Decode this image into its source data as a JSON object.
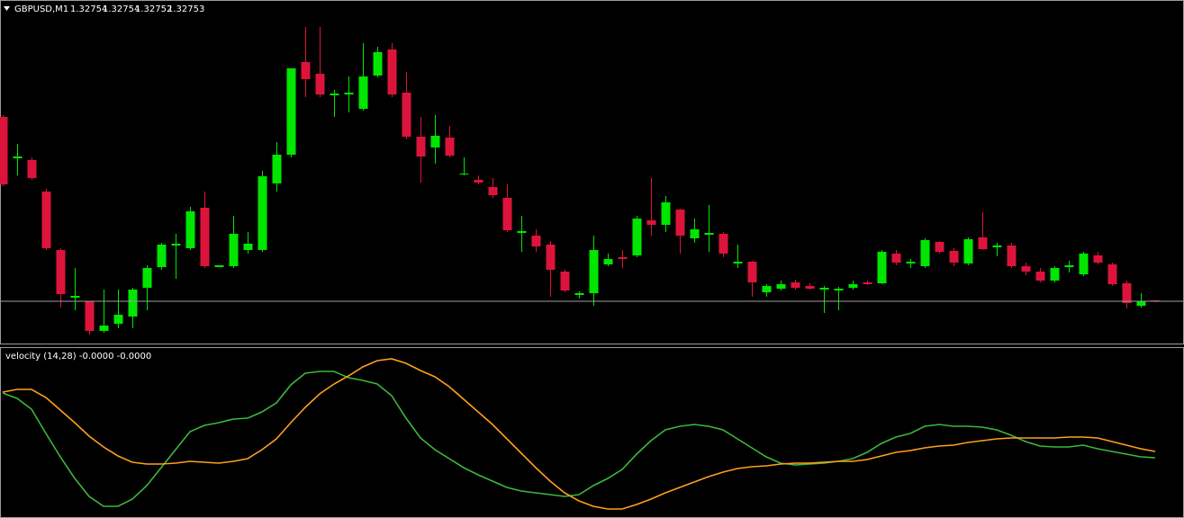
{
  "chart_data": [
    {
      "type": "candlestick",
      "symbol": "GBPUSD,M1",
      "open": [
        1.32958,
        1.32912,
        1.3291,
        1.32875,
        1.3281,
        1.32757,
        1.32753,
        1.3272,
        1.32728,
        1.32736,
        1.32768,
        1.32791,
        1.32815,
        1.32812,
        1.32857,
        1.32791,
        1.32792,
        1.3281,
        1.3281,
        1.32884,
        1.32916,
        1.33019,
        1.33006,
        1.32982,
        1.32983,
        1.32967,
        1.33004,
        1.33033,
        1.32985,
        1.32936,
        1.32924,
        1.32935,
        1.32894,
        1.32888,
        1.3288,
        1.32868,
        1.32829,
        1.32826,
        1.32816,
        1.32786,
        1.3276,
        1.32762,
        1.32794,
        1.32802,
        1.32804,
        1.32843,
        1.32838,
        1.32855,
        1.32823,
        1.32827,
        1.32828,
        1.32795,
        1.32797,
        1.32763,
        1.32767,
        1.32774,
        1.3277,
        1.32766,
        1.32765,
        1.32768,
        1.32774,
        1.32773,
        1.32806,
        1.32795,
        1.32792,
        1.32819,
        1.32809,
        1.32795,
        1.32824,
        1.32813,
        1.32815,
        1.32792,
        1.32786,
        1.32776,
        1.32791,
        1.32783,
        1.32804,
        1.32794,
        1.32773,
        1.32748,
        1.32754
      ],
      "high": [
        1.3296,
        1.32928,
        1.32913,
        1.32878,
        1.32812,
        1.3279,
        1.32753,
        1.32766,
        1.32766,
        1.32768,
        1.32793,
        1.32818,
        1.32828,
        1.32858,
        1.32875,
        1.32793,
        1.32848,
        1.3283,
        1.32898,
        1.3293,
        1.33012,
        1.33058,
        1.33058,
        1.32988,
        1.33003,
        1.3304,
        1.33036,
        1.3304,
        1.33008,
        1.32958,
        1.3296,
        1.32948,
        1.32913,
        1.32893,
        1.3289,
        1.32883,
        1.32848,
        1.32833,
        1.3282,
        1.32788,
        1.32764,
        1.32826,
        1.32806,
        1.3281,
        1.32848,
        1.3289,
        1.3287,
        1.32856,
        1.32845,
        1.3286,
        1.3283,
        1.32816,
        1.32798,
        1.32772,
        1.32776,
        1.32777,
        1.32773,
        1.3277,
        1.32769,
        1.32776,
        1.32776,
        1.3281,
        1.3281,
        1.328,
        1.32823,
        1.3282,
        1.32812,
        1.32824,
        1.32852,
        1.32818,
        1.32818,
        1.32796,
        1.3279,
        1.32792,
        1.32798,
        1.32808,
        1.32808,
        1.32796,
        1.32776,
        1.32762,
        1.32754
      ],
      "low": [
        1.32881,
        1.32893,
        1.32888,
        1.3281,
        1.32746,
        1.32743,
        1.32716,
        1.32718,
        1.32723,
        1.32723,
        1.32743,
        1.32788,
        1.32778,
        1.3281,
        1.3279,
        1.32791,
        1.3279,
        1.32806,
        1.32808,
        1.32875,
        1.32913,
        1.3298,
        1.3298,
        1.32958,
        1.32963,
        1.32965,
        1.33002,
        1.3298,
        1.32933,
        1.32885,
        1.32906,
        1.32913,
        1.32893,
        1.32883,
        1.32868,
        1.3283,
        1.32808,
        1.32808,
        1.32758,
        1.32763,
        1.32756,
        1.32748,
        1.32792,
        1.3279,
        1.32802,
        1.32826,
        1.3283,
        1.32806,
        1.32818,
        1.32808,
        1.32802,
        1.3279,
        1.32758,
        1.32758,
        1.32765,
        1.32766,
        1.32766,
        1.3274,
        1.32743,
        1.32766,
        1.32771,
        1.32772,
        1.32793,
        1.3279,
        1.3279,
        1.32806,
        1.32792,
        1.32793,
        1.3281,
        1.32803,
        1.3279,
        1.32782,
        1.32774,
        1.32774,
        1.32785,
        1.32781,
        1.32794,
        1.3277,
        1.32745,
        1.32746,
        1.32752
      ],
      "close": [
        1.32883,
        1.32914,
        1.3289,
        1.32812,
        1.32761,
        1.32759,
        1.3272,
        1.32726,
        1.32738,
        1.32766,
        1.3279,
        1.32816,
        1.32817,
        1.32853,
        1.32792,
        1.32793,
        1.32828,
        1.32817,
        1.32892,
        1.32916,
        1.33012,
        1.33,
        1.32983,
        1.32984,
        1.32985,
        1.33003,
        1.3303,
        1.32983,
        1.32936,
        1.32914,
        1.32937,
        1.32915,
        1.32895,
        1.32885,
        1.32871,
        1.32832,
        1.32831,
        1.32814,
        1.32788,
        1.32765,
        1.32762,
        1.3281,
        1.328,
        1.328,
        1.32845,
        1.32838,
        1.32863,
        1.32826,
        1.32833,
        1.32829,
        1.32806,
        1.32797,
        1.32774,
        1.3277,
        1.32772,
        1.32768,
        1.32767,
        1.32768,
        1.32767,
        1.32772,
        1.32772,
        1.32808,
        1.32796,
        1.32797,
        1.32821,
        1.32808,
        1.32796,
        1.32822,
        1.32811,
        1.32815,
        1.32792,
        1.32786,
        1.32776,
        1.3279,
        1.32793,
        1.32806,
        1.32796,
        1.32772,
        1.32751,
        1.32753,
        1.32753
      ],
      "up_color": "#00e600",
      "down_color": "#dc143c",
      "bid_color": "#a0a0a0",
      "ylim": [
        1.32706,
        1.33086
      ]
    },
    {
      "type": "line",
      "title": "velocity (14,28) -0.0000 -0.0000",
      "series": [
        {
          "color": "#3cb83c",
          "values": [
            4.3e-05,
            3.7e-05,
            2.5e-05,
            -2e-06,
            -2.8e-05,
            -5.2e-05,
            -7.2e-05,
            -8.3e-05,
            -8.3e-05,
            -7.5e-05,
            -6e-05,
            -4e-05,
            -2e-05,
            0,
            7e-06,
            1e-05,
            1.4e-05,
            1.5e-05,
            2.2e-05,
            3.2e-05,
            5.2e-05,
            6.5e-05,
            6.7e-05,
            6.7e-05,
            6e-05,
            5.7e-05,
            5.3e-05,
            4e-05,
            1.5e-05,
            -7e-06,
            -2e-05,
            -3e-05,
            -4e-05,
            -4.8e-05,
            -5.5e-05,
            -6.2e-05,
            -6.6e-05,
            -6.8e-05,
            -7e-05,
            -7.2e-05,
            -7e-05,
            -6e-05,
            -5.2e-05,
            -4.2e-05,
            -2.5e-05,
            -1e-05,
            2e-06,
            6e-06,
            8e-06,
            6e-06,
            2e-06,
            -8e-06,
            -1.8e-05,
            -2.8e-05,
            -3.5e-05,
            -3.7e-05,
            -3.6e-05,
            -3.5e-05,
            -3.3e-05,
            -3e-05,
            -2.3e-05,
            -1.3e-05,
            -6e-06,
            -2e-06,
            6e-06,
            8e-06,
            6e-06,
            6e-06,
            5e-06,
            2e-06,
            -4e-06,
            -1.1e-05,
            -1.6e-05,
            -1.7e-05,
            -1.7e-05,
            -1.5e-05,
            -1.9e-05,
            -2.2e-05,
            -2.5e-05,
            -2.8e-05,
            -2.9e-05
          ]
        },
        {
          "color": "#ff9f1c",
          "values": [
            4.4e-05,
            4.7e-05,
            4.7e-05,
            3.8e-05,
            2.4e-05,
            1e-05,
            -5e-06,
            -1.7e-05,
            -2.7e-05,
            -3.4e-05,
            -3.6e-05,
            -3.6e-05,
            -3.5e-05,
            -3.3e-05,
            -3.4e-05,
            -3.5e-05,
            -3.3e-05,
            -3e-05,
            -2e-05,
            -8e-06,
            1e-05,
            2.7e-05,
            4.2e-05,
            5.3e-05,
            6.2e-05,
            7.2e-05,
            7.9e-05,
            8.1e-05,
            7.6e-05,
            6.8e-05,
            6.1e-05,
            5e-05,
            3.6e-05,
            2.2e-05,
            8e-06,
            -8e-06,
            -2.4e-05,
            -4e-05,
            -5.5e-05,
            -6.8e-05,
            -7.7e-05,
            -8.3e-05,
            -8.6e-05,
            -8.6e-05,
            -8.1e-05,
            -7.5e-05,
            -6.8e-05,
            -6.2e-05,
            -5.6e-05,
            -5e-05,
            -4.5e-05,
            -4.1e-05,
            -3.9e-05,
            -3.8e-05,
            -3.6e-05,
            -3.5e-05,
            -3.5e-05,
            -3.4e-05,
            -3.3e-05,
            -3.3e-05,
            -3.1e-05,
            -2.7e-05,
            -2.3e-05,
            -2.1e-05,
            -1.8e-05,
            -1.6e-05,
            -1.5e-05,
            -1.2e-05,
            -1e-05,
            -8e-06,
            -7e-06,
            -7e-06,
            -7e-06,
            -7e-06,
            -6e-06,
            -6e-06,
            -7e-06,
            -1.1e-05,
            -1.5e-05,
            -1.9e-05,
            -2.2e-05
          ]
        }
      ],
      "ylim": [
        -9.4e-05,
        9.2e-05
      ]
    }
  ]
}
